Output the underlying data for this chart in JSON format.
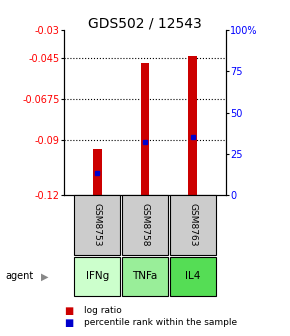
{
  "title": "GDS502 / 12543",
  "samples": [
    "GSM8753",
    "GSM8758",
    "GSM8763"
  ],
  "agents": [
    "IFNg",
    "TNFa",
    "IL4"
  ],
  "log_ratio_values": [
    -0.095,
    -0.048,
    -0.044
  ],
  "log_ratio_base": -0.12,
  "percentile_ranks": [
    13,
    32,
    35
  ],
  "ylim_left": [
    -0.12,
    -0.03
  ],
  "ylim_right": [
    0,
    100
  ],
  "yticks_left": [
    -0.12,
    -0.09,
    -0.0675,
    -0.045,
    -0.03
  ],
  "ytick_labels_left": [
    "-0.12",
    "-0.09",
    "-0.0675",
    "-0.045",
    "-0.03"
  ],
  "yticks_right": [
    0,
    25,
    50,
    75,
    100
  ],
  "ytick_labels_right": [
    "0",
    "25",
    "50",
    "75",
    "100%"
  ],
  "bar_color": "#cc0000",
  "percentile_color": "#0000cc",
  "agent_colors": [
    "#ccffcc",
    "#99ee99",
    "#55dd55"
  ],
  "sample_box_color": "#cccccc",
  "legend_log_ratio": "log ratio",
  "legend_percentile": "percentile rank within the sample",
  "figsize": [
    2.9,
    3.36
  ],
  "dpi": 100
}
